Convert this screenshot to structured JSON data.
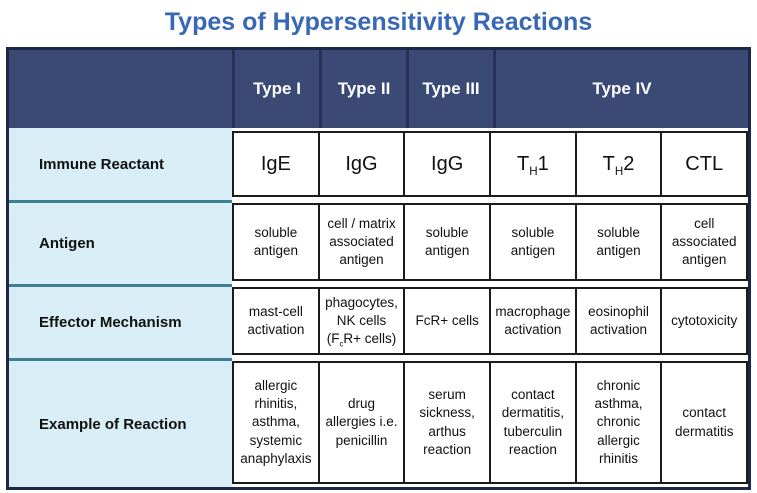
{
  "title": "Types of Hypersensitivity Reactions",
  "colors": {
    "title_blue": "#3868b5",
    "header_bg": "#3a4a75",
    "header_divider": "#273257",
    "label_bg": "#d8edf5",
    "label_divider_teal": "#3e7f92",
    "outer_border": "#1d2746",
    "cell_border": "#1b1b1b",
    "header_text": "#ffffff",
    "body_text": "#111111"
  },
  "chart_data": {
    "type": "table",
    "title": "Types of Hypersensitivity Reactions",
    "header": {
      "corner": "",
      "columns": [
        {
          "label": "Type I",
          "span": 1
        },
        {
          "label": "Type II",
          "span": 1
        },
        {
          "label": "Type III",
          "span": 1
        },
        {
          "label": "Type IV",
          "span": 3
        }
      ]
    },
    "rows": [
      {
        "label": "Immune Reactant",
        "cells": [
          "IgE",
          "IgG",
          "IgG",
          "T_H_1",
          "T_H_2",
          "CTL"
        ]
      },
      {
        "label": "Antigen",
        "cells": [
          "soluble antigen",
          "cell / matrix associated antigen",
          "soluble antigen",
          "soluble antigen",
          "soluble antigen",
          "cell associated antigen"
        ]
      },
      {
        "label": "Effector Mechanism",
        "cells": [
          "mast-cell activation",
          "phagocytes, NK cells (F_c_R+ cells)",
          "FcR+ cells",
          "macrophage activation",
          "eosinophil activation",
          "cytotoxicity"
        ]
      },
      {
        "label": "Example of Reaction",
        "cells": [
          "allergic rhinitis, asthma, systemic anaphylaxis",
          "drug allergies i.e. penicillin",
          "serum sickness, arthus reaction",
          "contact dermatitis, tuberculin reaction",
          "chronic asthma, chronic allergic rhinitis",
          "contact dermatitis"
        ]
      }
    ]
  }
}
